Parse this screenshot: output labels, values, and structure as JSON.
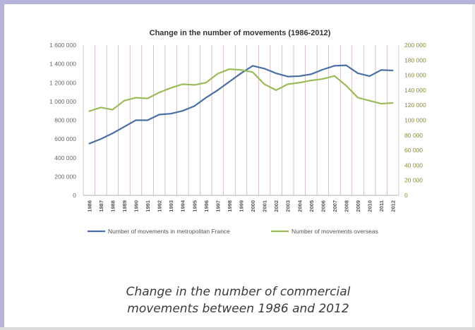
{
  "caption": {
    "line1": "Change in the number of commercial",
    "line2": "movements between 1986 and 2012"
  },
  "colors": {
    "frame_accent": "#b7b4dc",
    "series_france": "#4a6fa5",
    "series_overseas": "#9bbb59",
    "gridline": "#c8a9a9",
    "tick_left": "#666666",
    "tick_right": "#8a8a3a"
  },
  "chart_data": {
    "type": "line",
    "title": "Change in the number of movements (1986-2012)",
    "x": [
      "1986",
      "1987",
      "1988",
      "1989",
      "1990",
      "1991",
      "1992",
      "1993",
      "1994",
      "1995",
      "1996",
      "1997",
      "1998",
      "1999",
      "2000",
      "2001",
      "2002",
      "2003",
      "2004",
      "2005",
      "2006",
      "2007",
      "2008",
      "2009",
      "2010",
      "2011",
      "2012"
    ],
    "y_left_ticks": [
      "1 600 000",
      "1 400 000",
      "1 200 000",
      "1 000 000",
      "800 000",
      "600 000",
      "400 000",
      "200 000",
      "0"
    ],
    "y_right_ticks": [
      "200 000",
      "180 000",
      "160 000",
      "140 000",
      "120 000",
      "100 000",
      "80 000",
      "60 000",
      "40 000",
      "20 000",
      "0"
    ],
    "ylim_left": [
      0,
      1600000
    ],
    "ylim_right": [
      0,
      200000
    ],
    "grid": "vertical",
    "legend_position": "bottom",
    "series": [
      {
        "name": "Number of movements in metropolitan France",
        "axis": "left",
        "values": [
          550000,
          600000,
          660000,
          730000,
          800000,
          800000,
          860000,
          870000,
          900000,
          950000,
          1040000,
          1120000,
          1210000,
          1300000,
          1380000,
          1350000,
          1300000,
          1265000,
          1270000,
          1290000,
          1340000,
          1380000,
          1385000,
          1300000,
          1270000,
          1335000,
          1330000
        ]
      },
      {
        "name": "Number of movements overseas",
        "axis": "right",
        "values": [
          112000,
          117000,
          114000,
          126000,
          130000,
          129000,
          137000,
          143000,
          148000,
          147000,
          150000,
          162000,
          168000,
          167000,
          164000,
          148000,
          140000,
          148000,
          150000,
          153000,
          155000,
          159000,
          146000,
          130000,
          126000,
          122000,
          123000
        ]
      }
    ]
  }
}
